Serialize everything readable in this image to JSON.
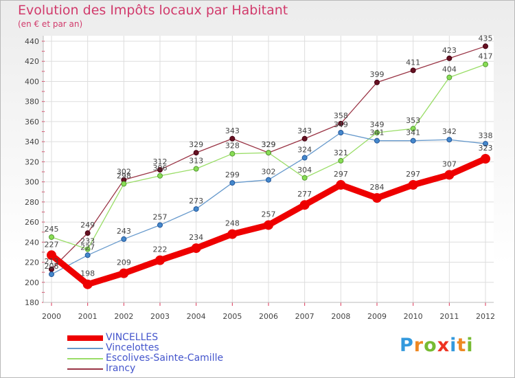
{
  "chart_data": {
    "type": "line",
    "title": "Evolution des Impôts locaux par Habitant",
    "subtitle": "(en € et par an)",
    "xlabel": "",
    "ylabel": "",
    "ylim": [
      180,
      440
    ],
    "yticks": [
      "180",
      "200",
      "220",
      "240",
      "260",
      "280",
      "300",
      "320",
      "340",
      "360",
      "380",
      "400",
      "420",
      "440"
    ],
    "categories": [
      "2000",
      "2001",
      "2002",
      "2003",
      "2004",
      "2005",
      "2006",
      "2007",
      "2008",
      "2009",
      "2010",
      "2011",
      "2012"
    ],
    "series": [
      {
        "name": "VINCELLES",
        "color": "#ee0000",
        "values": [
          227,
          198,
          209,
          222,
          234,
          248,
          257,
          277,
          297,
          284,
          297,
          307,
          323
        ]
      },
      {
        "name": "Vincelottes",
        "color": "#6699cc",
        "values": [
          208,
          227,
          243,
          257,
          273,
          299,
          302,
          324,
          349,
          341,
          341,
          342,
          338
        ]
      },
      {
        "name": "Escolives-Sainte-Camille",
        "color": "#99dd66",
        "values": [
          245,
          233,
          298,
          306,
          313,
          328,
          329,
          304,
          321,
          349,
          353,
          404,
          417
        ]
      },
      {
        "name": "Irancy",
        "color": "#993344",
        "values": [
          213,
          249,
          302,
          312,
          329,
          343,
          329,
          343,
          358,
          399,
          411,
          423,
          435
        ]
      }
    ]
  },
  "logo": {
    "text": "Proxiti",
    "letters": [
      "P",
      "r",
      "o",
      "x",
      "i",
      "t",
      "i"
    ],
    "colors": [
      "#3399dd",
      "#ee8822",
      "#77bb33",
      "#ee3322",
      "#3399dd",
      "#ee8822",
      "#77bb33"
    ]
  }
}
